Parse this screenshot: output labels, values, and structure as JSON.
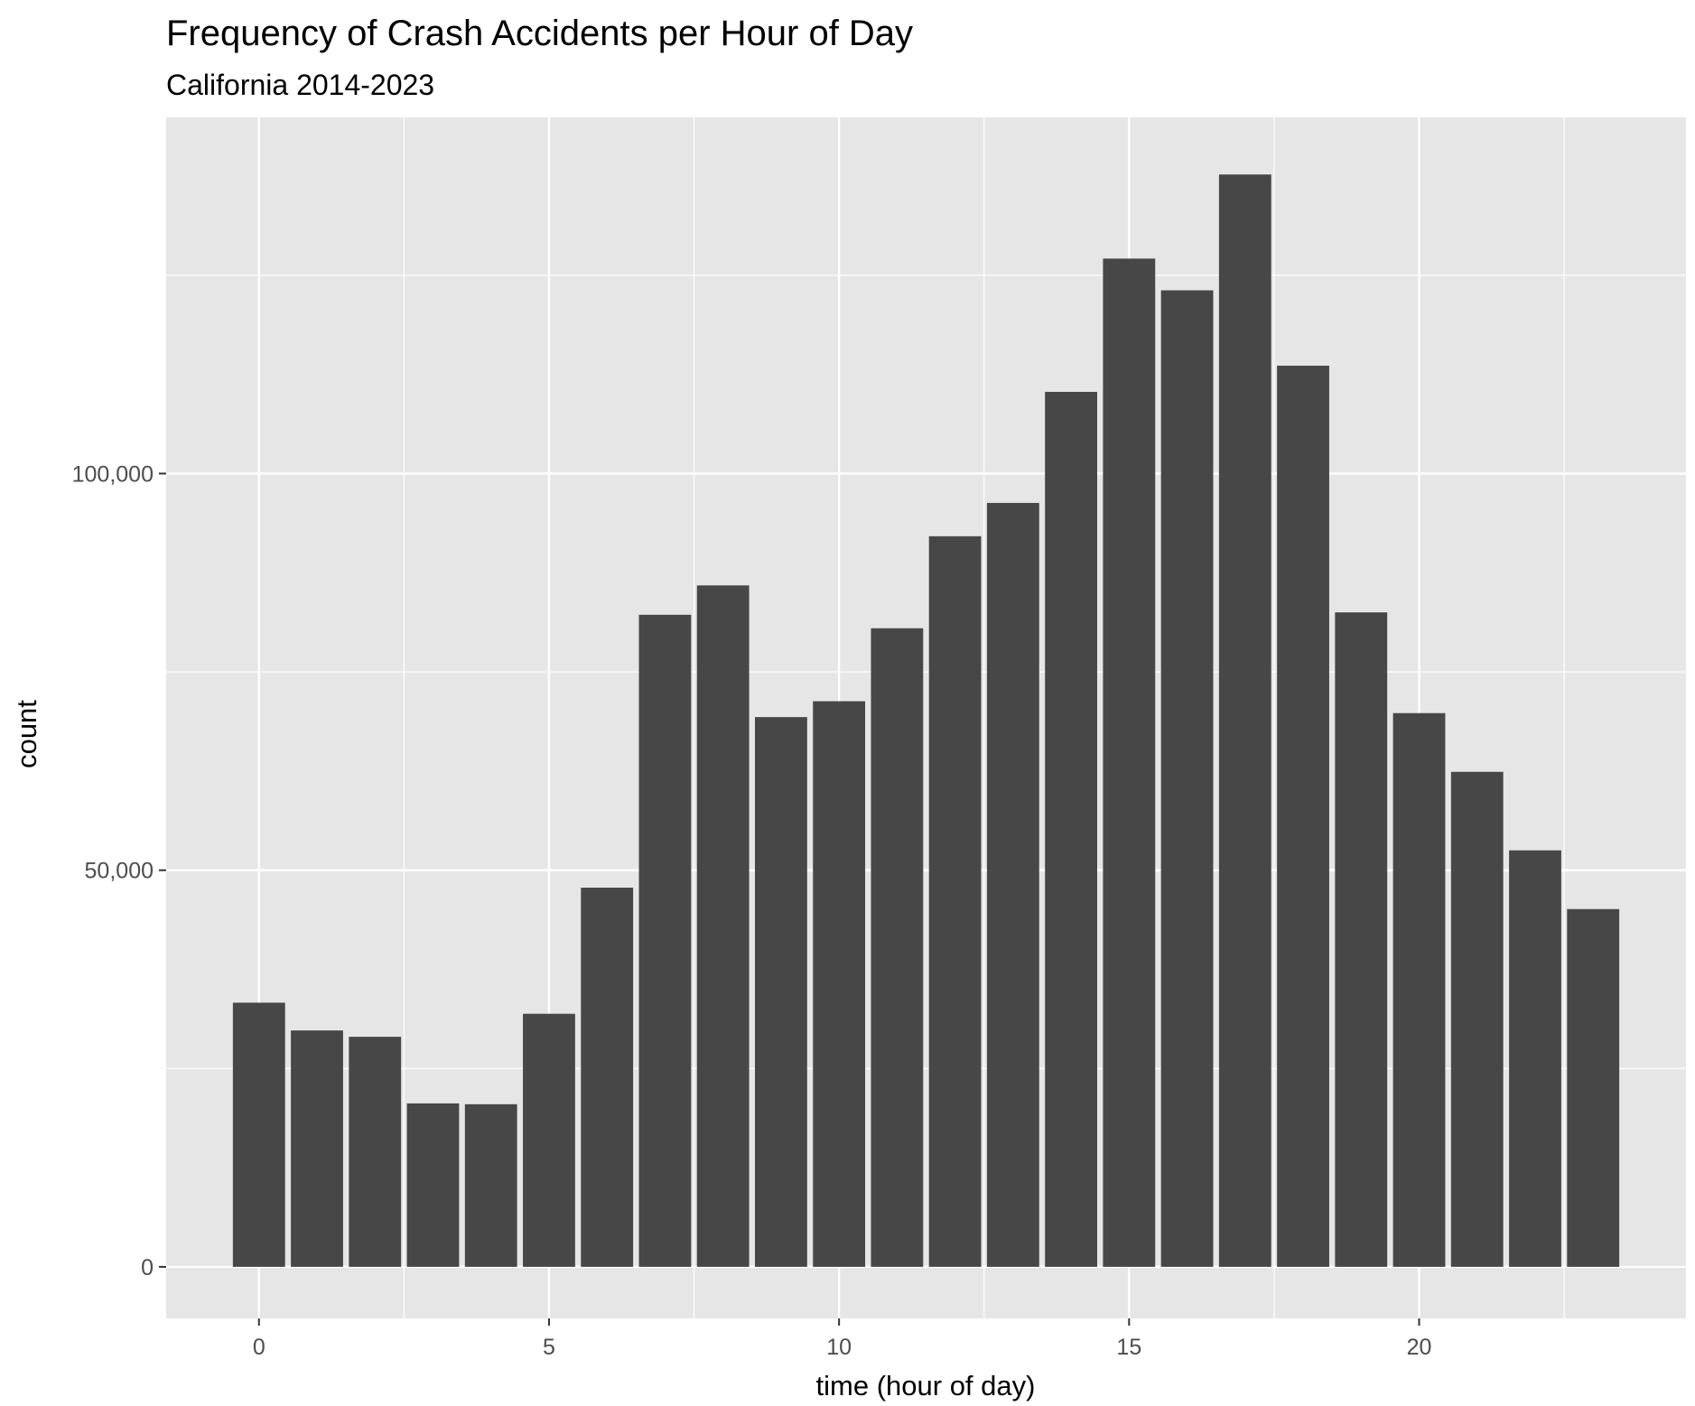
{
  "chart_data": {
    "type": "bar",
    "title": "Frequency of Crash Accidents per Hour of Day",
    "subtitle": "California 2014-2023",
    "xlabel": "time (hour of day)",
    "ylabel": "count",
    "x": [
      0,
      1,
      2,
      3,
      4,
      5,
      6,
      7,
      8,
      9,
      10,
      11,
      12,
      13,
      14,
      15,
      16,
      17,
      18,
      19,
      20,
      21,
      22,
      23
    ],
    "values": [
      33300,
      29800,
      29000,
      20600,
      20500,
      31900,
      47800,
      82200,
      85900,
      69300,
      71300,
      80500,
      92100,
      96300,
      110300,
      127100,
      123100,
      137700,
      113600,
      82500,
      69800,
      62400,
      52500,
      45100
    ],
    "xlim": [
      -1.6,
      24.6
    ],
    "ylim": [
      -6500,
      144900
    ],
    "x_ticks": [
      0,
      5,
      10,
      15,
      20
    ],
    "x_tick_labels": [
      "0",
      "5",
      "10",
      "15",
      "20"
    ],
    "y_ticks": [
      0,
      50000,
      100000
    ],
    "y_tick_labels": [
      "0",
      "50,000",
      "100,000"
    ],
    "grid": true,
    "legend": "none",
    "colors": {
      "bar": "#474747",
      "panel": "#e6e6e6",
      "grid": "#ffffff",
      "tick_text": "#4d4d4d",
      "tick_mark": "#333333"
    }
  }
}
